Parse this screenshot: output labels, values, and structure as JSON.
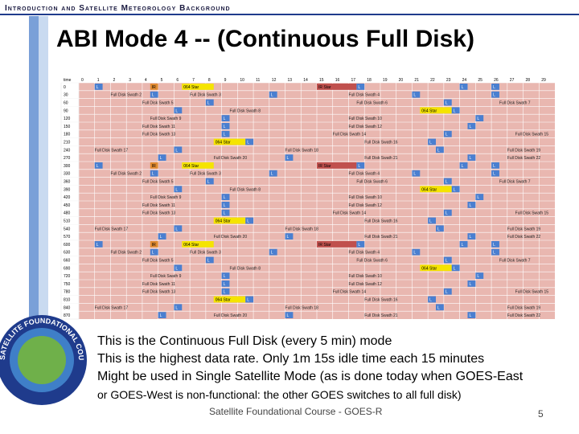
{
  "header": {
    "section": "Introduction and Satellite Meteorology Background",
    "title": "ABI Mode 4 -- (Continuous Full Disk)"
  },
  "table": {
    "time_header": "time",
    "columns": [
      0,
      1,
      2,
      3,
      4,
      5,
      6,
      7,
      8,
      9,
      10,
      11,
      12,
      13,
      14,
      15,
      16,
      17,
      18,
      19,
      20,
      21,
      22,
      23,
      24,
      25,
      26,
      27,
      28,
      29
    ],
    "rows": [
      {
        "time": 0,
        "cells": [
          {
            "text": "L",
            "col": 1,
            "color": "#4a7fd0"
          },
          {
            "text": "IR",
            "col": 4.5,
            "color": "#e08a30"
          },
          {
            "text": "064 Star",
            "col": 6.5,
            "span": 2,
            "color": "#f5e400"
          },
          {
            "text": "IR Star",
            "col": 15,
            "span": 2.5,
            "color": "#c0504d"
          },
          {
            "text": "L",
            "col": 17.5,
            "color": "#4a7fd0"
          },
          {
            "text": "L",
            "col": 24,
            "color": "#4a7fd0"
          },
          {
            "text": "L",
            "col": 26,
            "color": "#4a7fd0"
          }
        ]
      },
      {
        "time": 30,
        "cells": [
          {
            "text": "Full Disk Swath 2",
            "col": 2
          },
          {
            "text": "L",
            "col": 4.5,
            "color": "#4a7fd0"
          },
          {
            "text": "Full Disk Swath 3",
            "col": 7
          },
          {
            "text": "L",
            "col": 12,
            "color": "#4a7fd0"
          },
          {
            "text": "Full Disk Swath 4",
            "col": 17
          },
          {
            "text": "L",
            "col": 21,
            "color": "#4a7fd0"
          },
          {
            "text": "L",
            "col": 26,
            "color": "#4a7fd0"
          }
        ]
      },
      {
        "time": 60,
        "cells": [
          {
            "text": "Full Disk Swath 5",
            "col": 4
          },
          {
            "text": "L",
            "col": 8,
            "color": "#4a7fd0"
          },
          {
            "text": "Full Disk Swath 6",
            "col": 17.5
          },
          {
            "text": "L",
            "col": 23,
            "color": "#4a7fd0"
          },
          {
            "text": "Full Disk Swath 7",
            "col": 26.5
          }
        ]
      },
      {
        "time": 90,
        "cells": [
          {
            "text": "L",
            "col": 6,
            "color": "#4a7fd0"
          },
          {
            "text": "Full Disk Swath 8",
            "col": 9.5
          },
          {
            "text": "064 Star",
            "col": 21.5,
            "span": 2,
            "color": "#f5e400"
          },
          {
            "text": "L",
            "col": 23.5,
            "color": "#4a7fd0"
          }
        ]
      },
      {
        "time": 120,
        "cells": [
          {
            "text": "Full Disk Swath 9",
            "col": 4.5
          },
          {
            "text": "L",
            "col": 9,
            "color": "#4a7fd0"
          },
          {
            "text": "Full Disk Swath 10",
            "col": 17
          },
          {
            "text": "L",
            "col": 25,
            "color": "#4a7fd0"
          }
        ]
      },
      {
        "time": 150,
        "cells": [
          {
            "text": "Full Disk Swath 11",
            "col": 4
          },
          {
            "text": "L",
            "col": 9,
            "color": "#4a7fd0"
          },
          {
            "text": "Full Disk Swath 12",
            "col": 17
          },
          {
            "text": "L",
            "col": 24.5,
            "color": "#4a7fd0"
          }
        ]
      },
      {
        "time": 180,
        "cells": [
          {
            "text": "Full Disk Swath 13",
            "col": 4
          },
          {
            "text": "L",
            "col": 9,
            "color": "#4a7fd0"
          },
          {
            "text": "Full Disk Swath 14",
            "col": 16
          },
          {
            "text": "L",
            "col": 23,
            "color": "#4a7fd0"
          },
          {
            "text": "Full Disk Swath 15",
            "col": 27.5
          }
        ]
      },
      {
        "time": 210,
        "cells": [
          {
            "text": "064 Star",
            "col": 8.5,
            "span": 2,
            "color": "#f5e400"
          },
          {
            "text": "L",
            "col": 10.5,
            "color": "#4a7fd0"
          },
          {
            "text": "Full Disk Swath 16",
            "col": 18
          },
          {
            "text": "L",
            "col": 22,
            "color": "#4a7fd0"
          }
        ]
      },
      {
        "time": 240,
        "cells": [
          {
            "text": "Full Disk Swath 17",
            "col": 1
          },
          {
            "text": "L",
            "col": 6,
            "color": "#4a7fd0"
          },
          {
            "text": "Full Disk Swath 18",
            "col": 13
          },
          {
            "text": "L",
            "col": 22.5,
            "color": "#4a7fd0"
          },
          {
            "text": "Full Disk Swath 19",
            "col": 27
          }
        ]
      },
      {
        "time": 270,
        "cells": [
          {
            "text": "L",
            "col": 5,
            "color": "#4a7fd0"
          },
          {
            "text": "Full Disk Swath 20",
            "col": 8.5
          },
          {
            "text": "L",
            "col": 13,
            "color": "#4a7fd0"
          },
          {
            "text": "Full Disk Swath 21",
            "col": 18
          },
          {
            "text": "L",
            "col": 24.5,
            "color": "#4a7fd0"
          },
          {
            "text": "Full Disk Swath 22",
            "col": 27
          }
        ]
      },
      {
        "time": 300,
        "cells": [
          {
            "text": "L",
            "col": 1,
            "color": "#4a7fd0"
          },
          {
            "text": "IR",
            "col": 4.5,
            "color": "#e08a30"
          },
          {
            "text": "064 Star",
            "col": 6.5,
            "span": 2,
            "color": "#f5e400"
          },
          {
            "text": "IR Star",
            "col": 15,
            "span": 2.5,
            "color": "#c0504d"
          },
          {
            "text": "L",
            "col": 17.5,
            "color": "#4a7fd0"
          },
          {
            "text": "L",
            "col": 24,
            "color": "#4a7fd0"
          },
          {
            "text": "L",
            "col": 26,
            "color": "#4a7fd0"
          }
        ]
      },
      {
        "time": 330,
        "cells": [
          {
            "text": "Full Disk Swath 2",
            "col": 2
          },
          {
            "text": "L",
            "col": 4.5,
            "color": "#4a7fd0"
          },
          {
            "text": "Full Disk Swath 3",
            "col": 7
          },
          {
            "text": "L",
            "col": 12,
            "color": "#4a7fd0"
          },
          {
            "text": "Full Disk Swath 4",
            "col": 17
          },
          {
            "text": "L",
            "col": 21,
            "color": "#4a7fd0"
          },
          {
            "text": "L",
            "col": 26,
            "color": "#4a7fd0"
          }
        ]
      },
      {
        "time": 360,
        "cells": [
          {
            "text": "Full Disk Swath 5",
            "col": 4
          },
          {
            "text": "L",
            "col": 8,
            "color": "#4a7fd0"
          },
          {
            "text": "Full Disk Swath 6",
            "col": 17.5
          },
          {
            "text": "L",
            "col": 23,
            "color": "#4a7fd0"
          },
          {
            "text": "Full Disk Swath 7",
            "col": 26.5
          }
        ]
      },
      {
        "time": 390,
        "cells": [
          {
            "text": "L",
            "col": 6,
            "color": "#4a7fd0"
          },
          {
            "text": "Full Disk Swath 8",
            "col": 9.5
          },
          {
            "text": "064 Star",
            "col": 21.5,
            "span": 2,
            "color": "#f5e400"
          },
          {
            "text": "L",
            "col": 23.5,
            "color": "#4a7fd0"
          }
        ]
      },
      {
        "time": 420,
        "cells": [
          {
            "text": "Full Disk Swath 9",
            "col": 4.5
          },
          {
            "text": "L",
            "col": 9,
            "color": "#4a7fd0"
          },
          {
            "text": "Full Disk Swath 10",
            "col": 17
          },
          {
            "text": "L",
            "col": 25,
            "color": "#4a7fd0"
          }
        ]
      },
      {
        "time": 450,
        "cells": [
          {
            "text": "Full Disk Swath 11",
            "col": 4
          },
          {
            "text": "L",
            "col": 9,
            "color": "#4a7fd0"
          },
          {
            "text": "Full Disk Swath 12",
            "col": 17
          },
          {
            "text": "L",
            "col": 24.5,
            "color": "#4a7fd0"
          }
        ]
      },
      {
        "time": 480,
        "cells": [
          {
            "text": "Full Disk Swath 13",
            "col": 4
          },
          {
            "text": "L",
            "col": 9,
            "color": "#4a7fd0"
          },
          {
            "text": "Full Disk Swath 14",
            "col": 16
          },
          {
            "text": "L",
            "col": 23,
            "color": "#4a7fd0"
          },
          {
            "text": "Full Disk Swath 15",
            "col": 27.5
          }
        ]
      },
      {
        "time": 510,
        "cells": [
          {
            "text": "064 Star",
            "col": 8.5,
            "span": 2,
            "color": "#f5e400"
          },
          {
            "text": "L",
            "col": 10.5,
            "color": "#4a7fd0"
          },
          {
            "text": "Full Disk Swath 16",
            "col": 18
          },
          {
            "text": "L",
            "col": 22,
            "color": "#4a7fd0"
          }
        ]
      },
      {
        "time": 540,
        "cells": [
          {
            "text": "Full Disk Swath 17",
            "col": 1
          },
          {
            "text": "L",
            "col": 6,
            "color": "#4a7fd0"
          },
          {
            "text": "Full Disk Swath 18",
            "col": 13
          },
          {
            "text": "L",
            "col": 22.5,
            "color": "#4a7fd0"
          },
          {
            "text": "Full Disk Swath 19",
            "col": 27
          }
        ]
      },
      {
        "time": 570,
        "cells": [
          {
            "text": "L",
            "col": 5,
            "color": "#4a7fd0"
          },
          {
            "text": "Full Disk Swath 20",
            "col": 8.5
          },
          {
            "text": "L",
            "col": 13,
            "color": "#4a7fd0"
          },
          {
            "text": "Full Disk Swath 21",
            "col": 18
          },
          {
            "text": "L",
            "col": 24.5,
            "color": "#4a7fd0"
          },
          {
            "text": "Full Disk Swath 22",
            "col": 27
          }
        ]
      },
      {
        "time": 600,
        "cells": [
          {
            "text": "L",
            "col": 1,
            "color": "#4a7fd0"
          },
          {
            "text": "IR",
            "col": 4.5,
            "color": "#e08a30"
          },
          {
            "text": "064 Star",
            "col": 6.5,
            "span": 2,
            "color": "#f5e400"
          },
          {
            "text": "IR Star",
            "col": 15,
            "span": 2.5,
            "color": "#c0504d"
          },
          {
            "text": "L",
            "col": 17.5,
            "color": "#4a7fd0"
          },
          {
            "text": "L",
            "col": 24,
            "color": "#4a7fd0"
          },
          {
            "text": "L",
            "col": 26,
            "color": "#4a7fd0"
          }
        ]
      },
      {
        "time": 630,
        "cells": [
          {
            "text": "Full Disk Swath 2",
            "col": 2
          },
          {
            "text": "L",
            "col": 4.5,
            "color": "#4a7fd0"
          },
          {
            "text": "Full Disk Swath 3",
            "col": 7
          },
          {
            "text": "L",
            "col": 12,
            "color": "#4a7fd0"
          },
          {
            "text": "Full Disk Swath 4",
            "col": 17
          },
          {
            "text": "L",
            "col": 21,
            "color": "#4a7fd0"
          },
          {
            "text": "L",
            "col": 26,
            "color": "#4a7fd0"
          }
        ]
      },
      {
        "time": 660,
        "cells": [
          {
            "text": "Full Disk Swath 5",
            "col": 4
          },
          {
            "text": "L",
            "col": 8,
            "color": "#4a7fd0"
          },
          {
            "text": "Full Disk Swath 6",
            "col": 17.5
          },
          {
            "text": "L",
            "col": 23,
            "color": "#4a7fd0"
          },
          {
            "text": "Full Disk Swath 7",
            "col": 26.5
          }
        ]
      },
      {
        "time": 690,
        "cells": [
          {
            "text": "L",
            "col": 6,
            "color": "#4a7fd0"
          },
          {
            "text": "Full Disk Swath 8",
            "col": 9.5
          },
          {
            "text": "064 Star",
            "col": 21.5,
            "span": 2,
            "color": "#f5e400"
          },
          {
            "text": "L",
            "col": 23.5,
            "color": "#4a7fd0"
          }
        ]
      },
      {
        "time": 720,
        "cells": [
          {
            "text": "Full Disk Swath 9",
            "col": 4.5
          },
          {
            "text": "L",
            "col": 9,
            "color": "#4a7fd0"
          },
          {
            "text": "Full Disk Swath 10",
            "col": 17
          },
          {
            "text": "L",
            "col": 25,
            "color": "#4a7fd0"
          }
        ]
      },
      {
        "time": 750,
        "cells": [
          {
            "text": "Full Disk Swath 11",
            "col": 4
          },
          {
            "text": "L",
            "col": 9,
            "color": "#4a7fd0"
          },
          {
            "text": "Full Disk Swath 12",
            "col": 17
          },
          {
            "text": "L",
            "col": 24.5,
            "color": "#4a7fd0"
          }
        ]
      },
      {
        "time": 780,
        "cells": [
          {
            "text": "Full Disk Swath 13",
            "col": 4
          },
          {
            "text": "L",
            "col": 9,
            "color": "#4a7fd0"
          },
          {
            "text": "Full Disk Swath 14",
            "col": 16
          },
          {
            "text": "L",
            "col": 23,
            "color": "#4a7fd0"
          },
          {
            "text": "Full Disk Swath 15",
            "col": 27.5
          }
        ]
      },
      {
        "time": 810,
        "cells": [
          {
            "text": "064 Star",
            "col": 8.5,
            "span": 2,
            "color": "#f5e400"
          },
          {
            "text": "L",
            "col": 10.5,
            "color": "#4a7fd0"
          },
          {
            "text": "Full Disk Swath 16",
            "col": 18
          },
          {
            "text": "L",
            "col": 22,
            "color": "#4a7fd0"
          }
        ]
      },
      {
        "time": 840,
        "cells": [
          {
            "text": "Full Disk Swath 17",
            "col": 1
          },
          {
            "text": "L",
            "col": 6,
            "color": "#4a7fd0"
          },
          {
            "text": "Full Disk Swath 18",
            "col": 13
          },
          {
            "text": "L",
            "col": 22.5,
            "color": "#4a7fd0"
          },
          {
            "text": "Full Disk Swath 19",
            "col": 27
          }
        ]
      },
      {
        "time": 870,
        "cells": [
          {
            "text": "L",
            "col": 5,
            "color": "#4a7fd0"
          },
          {
            "text": "Full Disk Swath 20",
            "col": 8.5
          },
          {
            "text": "L",
            "col": 13,
            "color": "#4a7fd0"
          },
          {
            "text": "Full Disk Swath 21",
            "col": 18
          },
          {
            "text": "L",
            "col": 24.5,
            "color": "#4a7fd0"
          },
          {
            "text": "Full Disk Swath 22",
            "col": 27
          }
        ]
      }
    ]
  },
  "logo": "SATELLITE FOUNDATIONAL COURSE GOES",
  "bullets": [
    "This is the Continuous Full Disk (every 5 min) mode",
    "This is the highest data rate.   Only 1m 15s idle time each 15 minutes",
    "Might be used in Single Satellite Mode (as is done today when GOES-East",
    "or GOES-West is non-functional:  the other GOES switches to all full disk)"
  ],
  "footer": {
    "text": "Satellite Foundational Course - GOES-R",
    "page": "5"
  }
}
